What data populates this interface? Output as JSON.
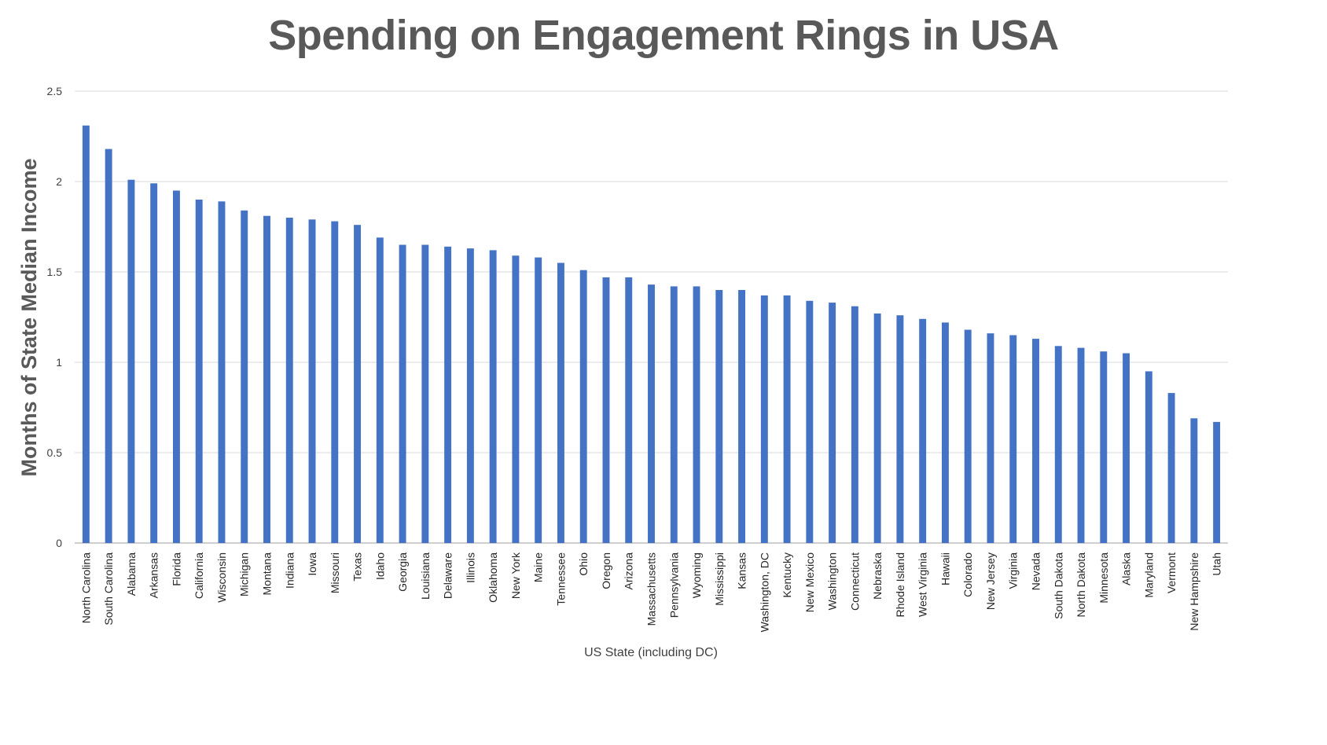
{
  "chart_data": {
    "type": "bar",
    "title": "Spending on Engagement Rings in USA",
    "xlabel": "US State (including DC)",
    "ylabel": "Months of State Median Income",
    "ylim": [
      0,
      2.5
    ],
    "yticks": [
      "0",
      "0.5",
      "1",
      "1.5",
      "2",
      "2.5"
    ],
    "grid": true,
    "legend": "none",
    "bar_color": "#4472C4",
    "categories": [
      "North Carolina",
      "South Carolina",
      "Alabama",
      "Arkansas",
      "Florida",
      "California",
      "Wisconsin",
      "Michigan",
      "Montana",
      "Indiana",
      "Iowa",
      "Missouri",
      "Texas",
      "Idaho",
      "Georgia",
      "Louisiana",
      "Delaware",
      "Illinois",
      "Oklahoma",
      "New York",
      "Maine",
      "Tennessee",
      "Ohio",
      "Oregon",
      "Arizona",
      "Massachusetts",
      "Pennsylvania",
      "Wyoming",
      "Mississippi",
      "Kansas",
      "Washington, DC",
      "Kentucky",
      "New Mexico",
      "Washington",
      "Connecticut",
      "Nebraska",
      "Rhode Island",
      "West Virginia",
      "Hawaii",
      "Colorado",
      "New Jersey",
      "Virginia",
      "Nevada",
      "South Dakota",
      "North Dakota",
      "Minnesota",
      "Alaska",
      "Maryland",
      "Vermont",
      "New Hampshire",
      "Utah"
    ],
    "values": [
      2.31,
      2.18,
      2.01,
      1.99,
      1.95,
      1.9,
      1.89,
      1.84,
      1.81,
      1.8,
      1.79,
      1.78,
      1.76,
      1.69,
      1.65,
      1.65,
      1.64,
      1.63,
      1.62,
      1.59,
      1.58,
      1.55,
      1.51,
      1.47,
      1.47,
      1.43,
      1.42,
      1.42,
      1.4,
      1.4,
      1.37,
      1.37,
      1.34,
      1.33,
      1.31,
      1.27,
      1.26,
      1.24,
      1.22,
      1.18,
      1.16,
      1.15,
      1.13,
      1.09,
      1.08,
      1.06,
      1.05,
      0.95,
      0.83,
      0.69,
      0.67
    ]
  }
}
